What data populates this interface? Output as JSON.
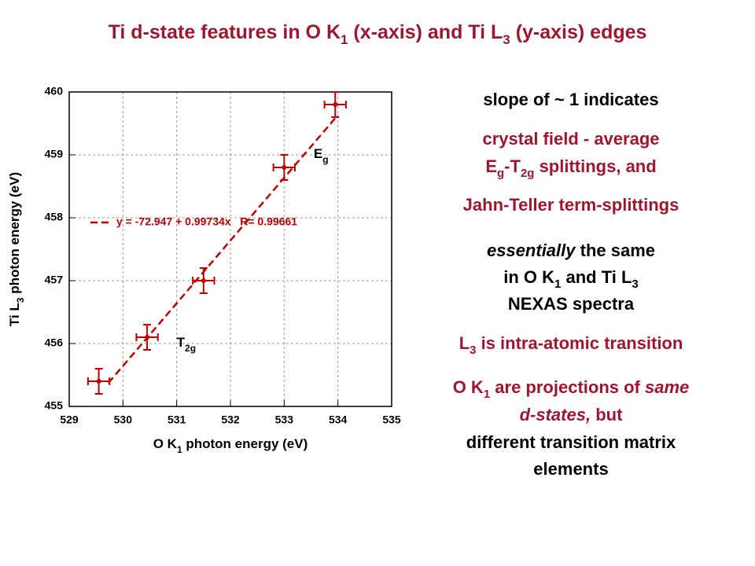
{
  "chart_data": {
    "type": "scatter",
    "title": [
      {
        "t": "Ti d-state features in O K"
      },
      {
        "t": "1",
        "sub": true
      },
      {
        "t": " (x-axis) and Ti L"
      },
      {
        "t": "3",
        "sub": true
      },
      {
        "t": " (y-axis) edges"
      }
    ],
    "title_color": "#a01530",
    "x_label": [
      {
        "t": "O K"
      },
      {
        "t": "1",
        "sub": true
      },
      {
        "t": " photon energy (eV)"
      }
    ],
    "y_label": [
      {
        "t": "Ti L"
      },
      {
        "t": "3",
        "sub": true
      },
      {
        "t": " photon energy (eV)"
      }
    ],
    "xlim": [
      529,
      535
    ],
    "ylim": [
      455,
      460
    ],
    "xticks": [
      529,
      530,
      531,
      532,
      533,
      534,
      535
    ],
    "yticks": [
      455,
      456,
      457,
      458,
      459,
      460
    ],
    "grid": true,
    "series": [
      {
        "color": "#c00000",
        "x": [
          529.55,
          530.45,
          531.5,
          533.0,
          533.95
        ],
        "y": [
          455.4,
          456.1,
          457.0,
          458.8,
          459.8
        ],
        "xerr": [
          0.2,
          0.2,
          0.2,
          0.2,
          0.2
        ],
        "yerr": [
          0.2,
          0.2,
          0.2,
          0.2,
          0.2
        ]
      }
    ],
    "fit": {
      "intercept": -72.947,
      "slope": 0.99734,
      "r": 0.99661,
      "xrange": [
        529.73,
        534.0
      ],
      "color": "#c00000",
      "label": "y = -72.947 + 0.99734x   R= 0.99661"
    },
    "annotations": [
      {
        "segments": [
          {
            "t": "E"
          },
          {
            "t": "g",
            "sub": true
          }
        ],
        "x": 533.55,
        "y": 459.0
      },
      {
        "segments": [
          {
            "t": "T"
          },
          {
            "t": "2g",
            "sub": true
          }
        ],
        "x": 531.0,
        "y": 456.0
      }
    ]
  },
  "text_panel": {
    "lines": [
      [
        {
          "t": "slope of ~ 1 indicates"
        }
      ],
      [
        {
          "t": "crystal field - average",
          "red": true
        }
      ],
      [
        {
          "t": "E",
          "red": true
        },
        {
          "t": "g",
          "sub": true,
          "red": true
        },
        {
          "t": "-T",
          "red": true
        },
        {
          "t": "2g",
          "sub": true,
          "red": true
        },
        {
          "t": " splittings, and",
          "red": true
        }
      ],
      [
        {
          "t": "Jahn-Teller term-splittings",
          "red": true
        }
      ],
      [
        {
          "t": "essentially",
          "italic": true
        },
        {
          "t": " the same"
        }
      ],
      [
        {
          "t": "in O K"
        },
        {
          "t": "1",
          "sub": true
        },
        {
          "t": " and Ti L"
        },
        {
          "t": "3",
          "sub": true
        }
      ],
      [
        {
          "t": "NEXAS spectra"
        }
      ],
      [
        {
          "t": "L",
          "red": true
        },
        {
          "t": "3",
          "sub": true,
          "red": true
        },
        {
          "t": " is intra-atomic transition",
          "red": true
        }
      ],
      [
        {
          "t": "O K",
          "red": true
        },
        {
          "t": "1",
          "sub": true,
          "red": true
        },
        {
          "t": " are projections of ",
          "red": true
        },
        {
          "t": "same",
          "italic": true,
          "red": true
        }
      ],
      [
        {
          "t": "d-states,",
          "italic": true,
          "red": true
        },
        {
          "t": " but",
          "red": true
        }
      ],
      [
        {
          "t": "different transition matrix"
        }
      ],
      [
        {
          "t": "elements"
        }
      ]
    ],
    "red_color": "#a01530"
  }
}
